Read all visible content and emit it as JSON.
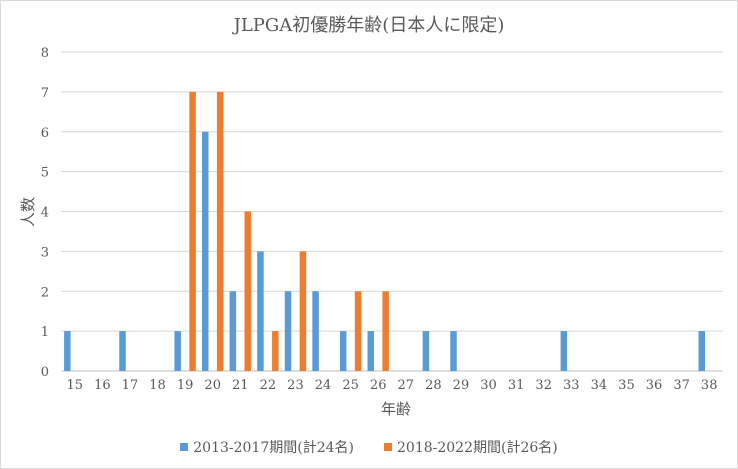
{
  "chart_data": {
    "type": "bar",
    "title": "JLPGA初優勝年齢(日本人に限定)",
    "xlabel": "年齢",
    "ylabel": "人数",
    "ylim": [
      0,
      8
    ],
    "yticks": [
      "0",
      "1",
      "2",
      "3",
      "4",
      "5",
      "6",
      "7",
      "8"
    ],
    "categories": [
      "15",
      "16",
      "17",
      "18",
      "19",
      "20",
      "21",
      "22",
      "23",
      "24",
      "25",
      "26",
      "27",
      "28",
      "29",
      "30",
      "31",
      "32",
      "33",
      "34",
      "35",
      "36",
      "37",
      "38"
    ],
    "grid": true,
    "legend_position": "bottom",
    "series": [
      {
        "name": "2013-2017期間(計24名)",
        "color": "#5b9bd5",
        "values": [
          1,
          0,
          1,
          0,
          1,
          6,
          2,
          3,
          2,
          2,
          1,
          1,
          0,
          1,
          1,
          0,
          0,
          0,
          1,
          0,
          0,
          0,
          0,
          1
        ]
      },
      {
        "name": "2018-2022期間(計26名)",
        "color": "#ed7d31",
        "values": [
          0,
          0,
          0,
          0,
          7,
          7,
          4,
          1,
          3,
          0,
          2,
          2,
          0,
          0,
          0,
          0,
          0,
          0,
          0,
          0,
          0,
          0,
          0,
          0
        ]
      }
    ]
  }
}
